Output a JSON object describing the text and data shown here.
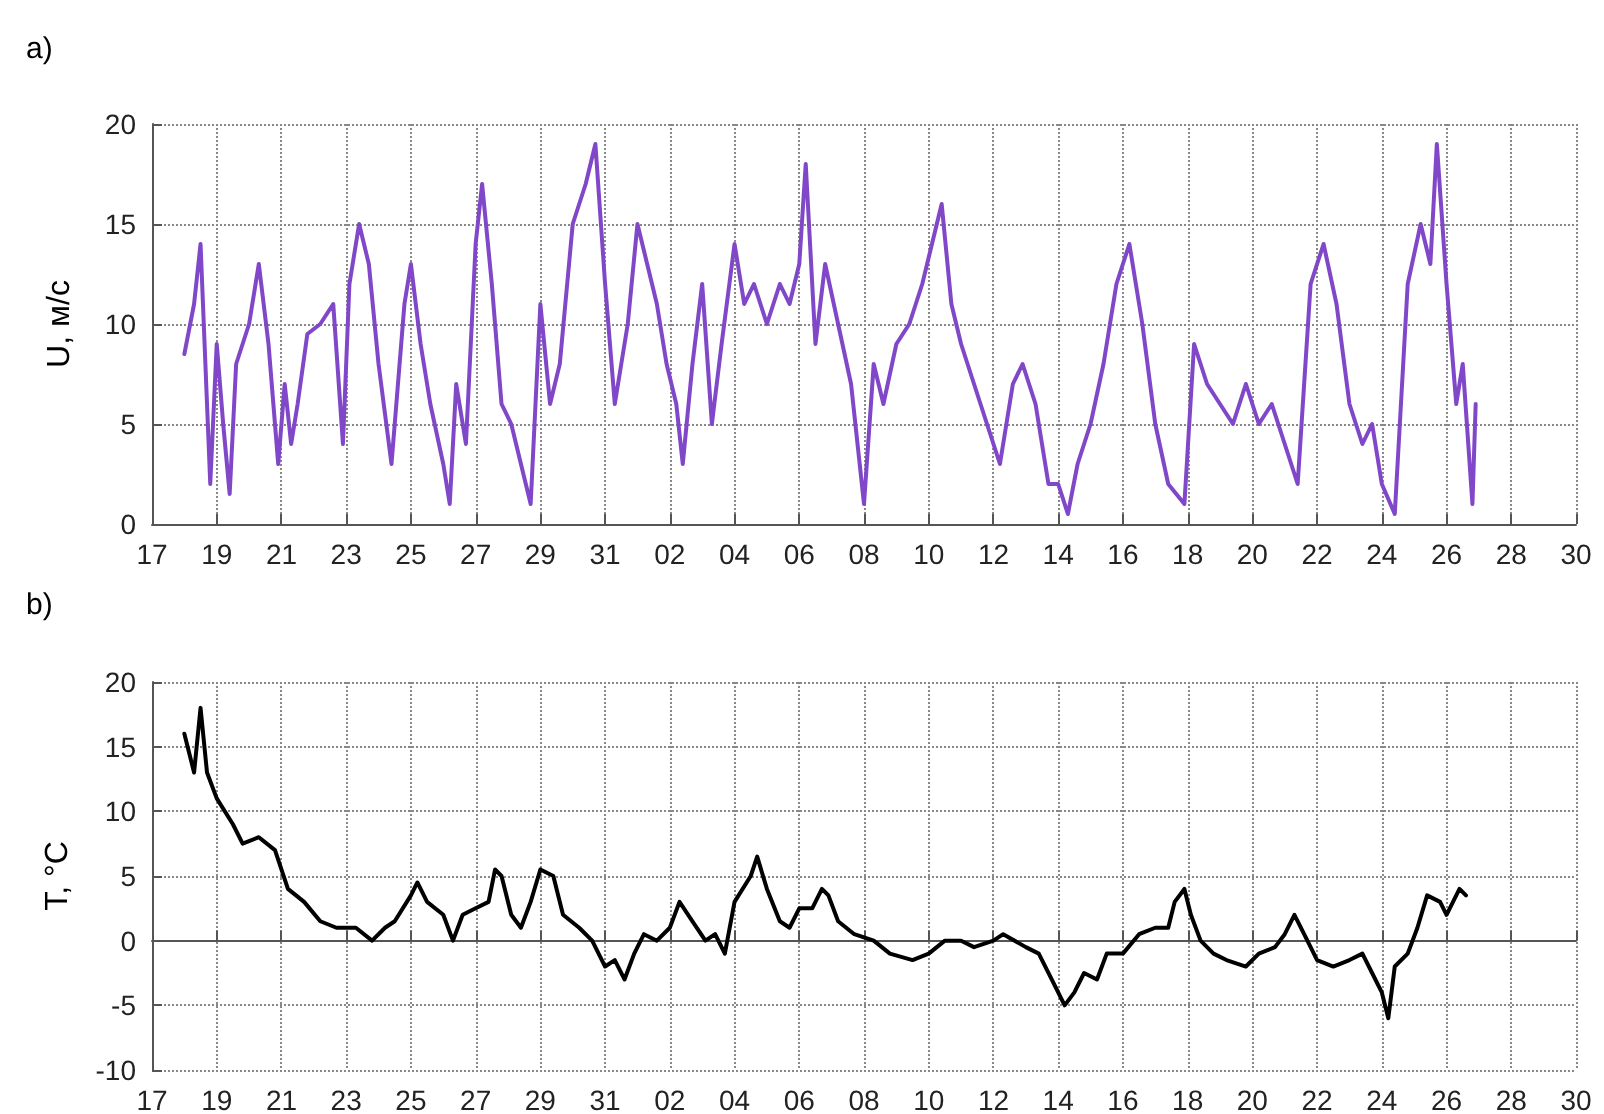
{
  "chart_data": [
    {
      "type": "line",
      "title": "a)",
      "ylabel": "U, м/с",
      "xlim": [
        "--10-17",
        "--11-30"
      ],
      "ylim": [
        0,
        20
      ],
      "yticks": [
        0,
        5,
        10,
        15,
        20
      ],
      "grid": true,
      "marker": "none",
      "line_style": "solid",
      "xticks": [
        {
          "value": "--10-17",
          "label": "17"
        },
        {
          "value": "--10-19",
          "label": "19"
        },
        {
          "value": "--10-21",
          "label": "21"
        },
        {
          "value": "--10-23",
          "label": "23"
        },
        {
          "value": "--10-25",
          "label": "25"
        },
        {
          "value": "--10-27",
          "label": "27"
        },
        {
          "value": "--10-29",
          "label": "29"
        },
        {
          "value": "--10-31",
          "label": "31"
        },
        {
          "value": "--11-02",
          "label": "02"
        },
        {
          "value": "--11-04",
          "label": "04"
        },
        {
          "value": "--11-06",
          "label": "06"
        },
        {
          "value": "--11-08",
          "label": "08"
        },
        {
          "value": "--11-10",
          "label": "10"
        },
        {
          "value": "--11-12",
          "label": "12"
        },
        {
          "value": "--11-14",
          "label": "14"
        },
        {
          "value": "--11-16",
          "label": "16"
        },
        {
          "value": "--11-18",
          "label": "18"
        },
        {
          "value": "--11-20",
          "label": "20"
        },
        {
          "value": "--11-22",
          "label": "22"
        },
        {
          "value": "--11-24",
          "label": "24"
        },
        {
          "value": "--11-26",
          "label": "26"
        },
        {
          "value": "--11-28",
          "label": "28"
        },
        {
          "value": "--11-30",
          "label": "30"
        }
      ],
      "series": [
        {
          "color": "#8048c8",
          "x": [
            "--10-18T00:00",
            "--10-18T07:12",
            "--10-18T12:00",
            "--10-18T16:48",
            "--10-18T19:12",
            "--10-19T00:00",
            "--10-19T04:48",
            "--10-19T09:36",
            "--10-19T14:24",
            "--10-20T00:00",
            "--10-20T07:12",
            "--10-20T14:24",
            "--10-20T21:36",
            "--10-21T02:24",
            "--10-21T07:12",
            "--10-21T12:00",
            "--10-21T19:12",
            "--10-22T04:48",
            "--10-22T14:24",
            "--10-22T21:36",
            "--10-23T02:24",
            "--10-23T09:36",
            "--10-23T16:48",
            "--10-24T00:00",
            "--10-24T09:36",
            "--10-24T19:12",
            "--10-25T00:00",
            "--10-25T07:12",
            "--10-25T14:24",
            "--10-26T00:00",
            "--10-26T04:48",
            "--10-26T09:36",
            "--10-26T16:48",
            "--10-27T00:00",
            "--10-27T04:48",
            "--10-27T12:00",
            "--10-27T19:12",
            "--10-28T02:24",
            "--10-28T09:36",
            "--10-28T16:48",
            "--10-29T00:00",
            "--10-29T07:12",
            "--10-29T14:24",
            "--10-30T00:00",
            "--10-30T09:36",
            "--10-30T16:48",
            "--10-31T00:00",
            "--10-31T07:12",
            "--10-31T16:48",
            "--11-01T00:00",
            "--11-01T07:12",
            "--11-01T14:24",
            "--11-01T21:36",
            "--11-02T04:48",
            "--11-02T09:36",
            "--11-02T16:48",
            "--11-03T00:00",
            "--11-03T07:12",
            "--11-03T14:24",
            "--11-04T00:00",
            "--11-04T07:12",
            "--11-04T14:24",
            "--11-05T00:00",
            "--11-05T09:36",
            "--11-05T16:48",
            "--11-06T00:00",
            "--11-06T04:48",
            "--11-06T12:00",
            "--11-06T19:12",
            "--11-07T04:48",
            "--11-07T14:24",
            "--11-08T00:00",
            "--11-08T07:12",
            "--11-08T14:24",
            "--11-09T00:00",
            "--11-09T09:36",
            "--11-09T19:12",
            "--11-10T02:24",
            "--11-10T09:36",
            "--11-10T16:48",
            "--11-11T00:00",
            "--11-11T09:36",
            "--11-11T19:12",
            "--11-12T04:48",
            "--11-12T14:24",
            "--11-12T21:36",
            "--11-13T07:12",
            "--11-13T16:48",
            "--11-14T00:00",
            "--11-14T07:12",
            "--11-14T14:24",
            "--11-15T00:00",
            "--11-15T09:36",
            "--11-15T19:12",
            "--11-16T04:48",
            "--11-16T14:24",
            "--11-17T00:00",
            "--11-17T09:36",
            "--11-17T21:36",
            "--11-18T04:48",
            "--11-18T14:24",
            "--11-19T00:00",
            "--11-19T09:36",
            "--11-19T19:12",
            "--11-20T04:48",
            "--11-20T14:24",
            "--11-21T00:00",
            "--11-21T09:36",
            "--11-21T19:12",
            "--11-22T04:48",
            "--11-22T14:24",
            "--11-23T00:00",
            "--11-23T09:36",
            "--11-23T16:48",
            "--11-24T00:00",
            "--11-24T09:36",
            "--11-24T19:12",
            "--11-25T04:48",
            "--11-25T12:00",
            "--11-25T16:48",
            "--11-26T00:00",
            "--11-26T07:12",
            "--11-26T12:00",
            "--11-26T19:12",
            "--11-26T21:36"
          ],
          "values": [
            8.5,
            11,
            14,
            6,
            2,
            9,
            5,
            1.5,
            8,
            10,
            13,
            9,
            3,
            7,
            4,
            6,
            9.5,
            10,
            11,
            4,
            12,
            15,
            13,
            8,
            3,
            11,
            13,
            9,
            6,
            3,
            1,
            7,
            4,
            14,
            17,
            12,
            6,
            5,
            3,
            1,
            11,
            6,
            8,
            15,
            17,
            19,
            12,
            6,
            10,
            15,
            13,
            11,
            8,
            6,
            3,
            8,
            12,
            5,
            9,
            14,
            11,
            12,
            10,
            12,
            11,
            13,
            18,
            9,
            13,
            10,
            7,
            1,
            8,
            6,
            9,
            10,
            12,
            14,
            16,
            11,
            9,
            7,
            5,
            3,
            7,
            8,
            6,
            2,
            2,
            0.5,
            3,
            5,
            8,
            12,
            14,
            10,
            5,
            2,
            1,
            9,
            7,
            6,
            5,
            7,
            5,
            6,
            4,
            2,
            12,
            14,
            11,
            6,
            4,
            5,
            2,
            0.5,
            12,
            15,
            13,
            19,
            12,
            6,
            8,
            1,
            6
          ]
        }
      ]
    },
    {
      "type": "line",
      "title": "b)",
      "ylabel": "T, °C",
      "xlim": [
        "--10-17",
        "--11-30"
      ],
      "ylim": [
        -10,
        20
      ],
      "yticks": [
        -10,
        -5,
        0,
        5,
        10,
        15,
        20
      ],
      "grid": true,
      "marker": "none",
      "line_style": "solid",
      "xticks": [
        {
          "value": "--10-17",
          "label": "17"
        },
        {
          "value": "--10-19",
          "label": "19"
        },
        {
          "value": "--10-21",
          "label": "21"
        },
        {
          "value": "--10-23",
          "label": "23"
        },
        {
          "value": "--10-25",
          "label": "25"
        },
        {
          "value": "--10-27",
          "label": "27"
        },
        {
          "value": "--10-29",
          "label": "29"
        },
        {
          "value": "--10-31",
          "label": "31"
        },
        {
          "value": "--11-02",
          "label": "02"
        },
        {
          "value": "--11-04",
          "label": "04"
        },
        {
          "value": "--11-06",
          "label": "06"
        },
        {
          "value": "--11-08",
          "label": "08"
        },
        {
          "value": "--11-10",
          "label": "10"
        },
        {
          "value": "--11-12",
          "label": "12"
        },
        {
          "value": "--11-14",
          "label": "14"
        },
        {
          "value": "--11-16",
          "label": "16"
        },
        {
          "value": "--11-18",
          "label": "18"
        },
        {
          "value": "--11-20",
          "label": "20"
        },
        {
          "value": "--11-22",
          "label": "22"
        },
        {
          "value": "--11-24",
          "label": "24"
        },
        {
          "value": "--11-26",
          "label": "26"
        },
        {
          "value": "--11-28",
          "label": "28"
        },
        {
          "value": "--11-30",
          "label": "30"
        }
      ],
      "series": [
        {
          "color": "#000000",
          "x": [
            "--10-18T00:00",
            "--10-18T07:12",
            "--10-18T12:00",
            "--10-18T16:48",
            "--10-19T00:00",
            "--10-19T12:00",
            "--10-19T19:12",
            "--10-20T07:12",
            "--10-20T19:12",
            "--10-21T04:48",
            "--10-21T16:48",
            "--10-22T04:48",
            "--10-22T16:48",
            "--10-23T07:12",
            "--10-23T19:12",
            "--10-24T04:48",
            "--10-24T12:00",
            "--10-25T00:00",
            "--10-25T04:48",
            "--10-25T12:00",
            "--10-26T00:00",
            "--10-26T07:12",
            "--10-26T14:24",
            "--10-27T00:00",
            "--10-27T09:36",
            "--10-27T14:24",
            "--10-27T19:12",
            "--10-28T02:24",
            "--10-28T09:36",
            "--10-28T16:48",
            "--10-29T00:00",
            "--10-29T09:36",
            "--10-29T16:48",
            "--10-30T04:48",
            "--10-30T14:24",
            "--10-31T00:00",
            "--10-31T07:12",
            "--10-31T14:24",
            "--10-31T21:36",
            "--11-01T04:48",
            "--11-01T14:24",
            "--11-02T00:00",
            "--11-02T07:12",
            "--11-02T16:48",
            "--11-03T02:24",
            "--11-03T09:36",
            "--11-03T16:48",
            "--11-04T00:00",
            "--11-04T12:00",
            "--11-04T16:48",
            "--11-05T00:00",
            "--11-05T09:36",
            "--11-05T16:48",
            "--11-06T00:00",
            "--11-06T09:36",
            "--11-06T16:48",
            "--11-06T21:36",
            "--11-07T04:48",
            "--11-07T16:48",
            "--11-08T07:12",
            "--11-08T19:12",
            "--11-09T12:00",
            "--11-10T00:00",
            "--11-10T12:00",
            "--11-11T00:00",
            "--11-11T09:36",
            "--11-12T00:00",
            "--11-12T07:12",
            "--11-13T00:00",
            "--11-13T09:36",
            "--11-13T19:12",
            "--11-14T04:48",
            "--11-14T12:00",
            "--11-14T19:12",
            "--11-15T04:48",
            "--11-15T12:00",
            "--11-16T00:00",
            "--11-16T12:00",
            "--11-17T00:00",
            "--11-17T09:36",
            "--11-17T14:24",
            "--11-17T21:36",
            "--11-18T02:24",
            "--11-18T09:36",
            "--11-18T19:12",
            "--11-19T04:48",
            "--11-19T19:12",
            "--11-20T04:48",
            "--11-20T16:48",
            "--11-21T00:00",
            "--11-21T07:12",
            "--11-21T14:24",
            "--11-22T00:00",
            "--11-22T12:00",
            "--11-23T00:00",
            "--11-23T09:36",
            "--11-23T16:48",
            "--11-24T00:00",
            "--11-24T04:48",
            "--11-24T09:36",
            "--11-24T19:12",
            "--11-25T02:24",
            "--11-25T09:36",
            "--11-25T19:12",
            "--11-26T00:00",
            "--11-26T09:36",
            "--11-26T14:24"
          ],
          "values": [
            16,
            13,
            18,
            13,
            11,
            9,
            7.5,
            8,
            7,
            4,
            3,
            1.5,
            1,
            1,
            0,
            1,
            1.5,
            3.5,
            4.5,
            3,
            2,
            0,
            2,
            2.5,
            3,
            5.5,
            5,
            2,
            1,
            3,
            5.5,
            5,
            2,
            1,
            0,
            -2,
            -1.5,
            -3,
            -1,
            0.5,
            0,
            1,
            3,
            1.5,
            0,
            0.5,
            -1,
            3,
            5,
            6.5,
            4,
            1.5,
            1,
            2.5,
            2.5,
            4,
            3.5,
            1.5,
            0.5,
            0,
            -1,
            -1.5,
            -1,
            0,
            0,
            -0.5,
            0,
            0.5,
            -0.5,
            -1,
            -3,
            -5,
            -4,
            -2.5,
            -3,
            -1,
            -1,
            0.5,
            1,
            1,
            3,
            4,
            2,
            0,
            -1,
            -1.5,
            -2,
            -1,
            -0.5,
            0.5,
            2,
            0.5,
            -1.5,
            -2,
            -1.5,
            -1,
            -2.5,
            -4,
            -6,
            -2,
            -1,
            1,
            3.5,
            3,
            2,
            4,
            3.5
          ]
        }
      ]
    }
  ]
}
